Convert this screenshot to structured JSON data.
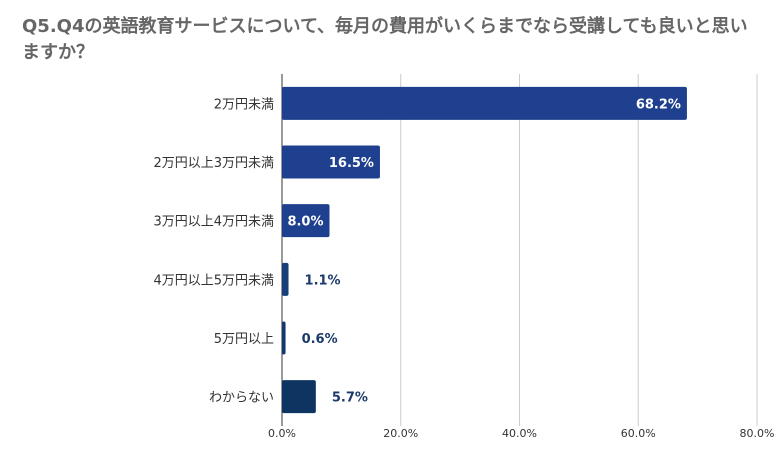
{
  "chart_data": {
    "type": "bar",
    "orientation": "horizontal",
    "title": "Q5.Q4の英語教育サービスについて、毎月の費用がいくらまでなら受講しても良いと思いますか？",
    "categories": [
      "2万円未満",
      "2万円以上3万円未満",
      "3万円以上4万円未満",
      "4万円以上5万円未満",
      "5万円以上",
      "わからない"
    ],
    "values": [
      68.2,
      16.5,
      8.0,
      1.1,
      0.6,
      5.7
    ],
    "value_labels": [
      "68.2%",
      "16.5%",
      "8.0%",
      "1.1%",
      "0.6%",
      "5.7%"
    ],
    "bar_colors": [
      "#1f3f8f",
      "#1f3f8f",
      "#1f3f8f",
      "#17407a",
      "#12386e",
      "#0e3461"
    ],
    "x_ticks": [
      0,
      20,
      40,
      60,
      80
    ],
    "x_tick_labels": [
      "0.0%",
      "20.0%",
      "40.0%",
      "60.0%",
      "80.0%"
    ],
    "xlim": [
      0,
      80
    ],
    "grid": true,
    "xlabel": "",
    "ylabel": ""
  }
}
